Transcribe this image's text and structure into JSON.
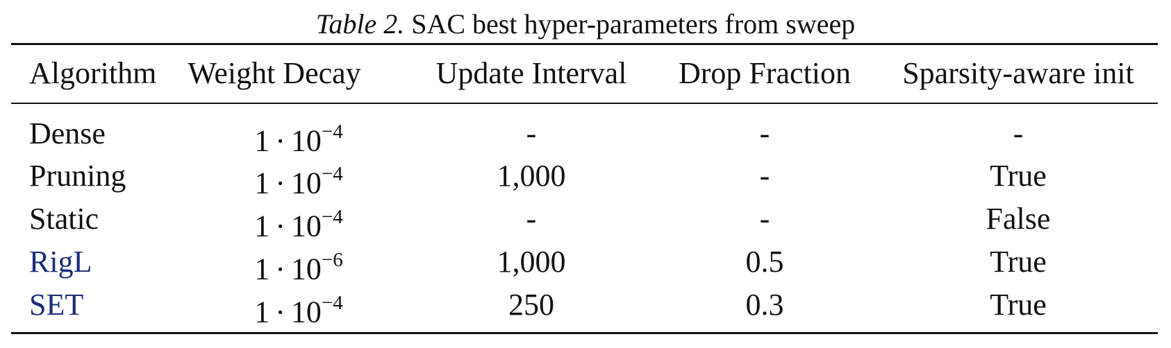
{
  "caption": {
    "label": "Table 2.",
    "text": "SAC best hyper-parameters from sweep"
  },
  "headers": [
    "Algorithm",
    "Weight Decay",
    "Update Interval",
    "Drop Fraction",
    "Sparsity-aware init"
  ],
  "rows": [
    {
      "algorithm": "Dense",
      "weight_decay": {
        "mantissa": "1",
        "base": "10",
        "exponent": "−4"
      },
      "update_interval": "-",
      "drop_fraction": "-",
      "sparsity_init": "-",
      "link": false
    },
    {
      "algorithm": "Pruning",
      "weight_decay": {
        "mantissa": "1",
        "base": "10",
        "exponent": "−4"
      },
      "update_interval": "1,000",
      "drop_fraction": "-",
      "sparsity_init": "True",
      "link": false
    },
    {
      "algorithm": "Static",
      "weight_decay": {
        "mantissa": "1",
        "base": "10",
        "exponent": "−4"
      },
      "update_interval": "-",
      "drop_fraction": "-",
      "sparsity_init": "False",
      "link": false
    },
    {
      "algorithm": "RigL",
      "weight_decay": {
        "mantissa": "1",
        "base": "10",
        "exponent": "−6"
      },
      "update_interval": "1,000",
      "drop_fraction": "0.5",
      "sparsity_init": "True",
      "link": true
    },
    {
      "algorithm": "SET",
      "weight_decay": {
        "mantissa": "1",
        "base": "10",
        "exponent": "−4"
      },
      "update_interval": "250",
      "drop_fraction": "0.3",
      "sparsity_init": "True",
      "link": true
    }
  ],
  "colors": {
    "text": "#111111",
    "link": "#1a2c7a"
  }
}
